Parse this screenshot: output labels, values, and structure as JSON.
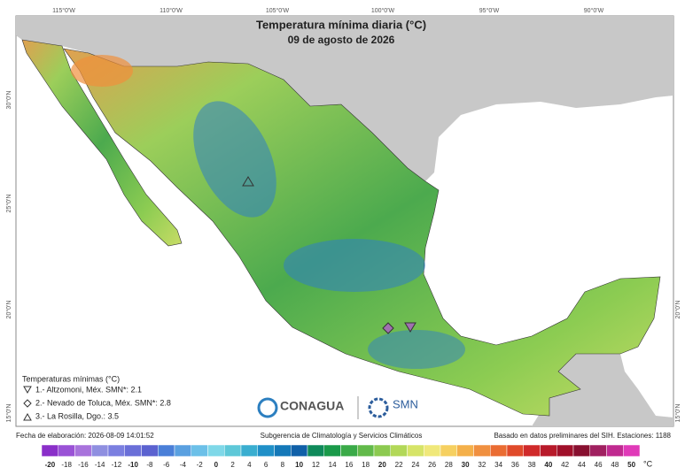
{
  "title": "Temperatura mínima diaria (°C)",
  "subtitle": "09 de agosto de 2026",
  "longitude_labels": [
    "115°0'W",
    "110°0'W",
    "105°0'W",
    "100°0'W",
    "95°0'W",
    "90°0'W"
  ],
  "left_latitude_labels": [
    "30°0'N",
    "25°0'N",
    "20°0'N",
    "15°0'N"
  ],
  "right_latitude_labels": [
    "20°0'N",
    "15°0'N"
  ],
  "legend": {
    "title": "Temperaturas mínimas (°C)",
    "items": [
      "1.- Altzomoni, Méx. SMN*: 2.1",
      "2.- Nevado de Toluca, Méx. SMN*: 2.8",
      "3.- La Rosilla, Dgo.: 3.5"
    ]
  },
  "logos": [
    "CONAGUA",
    "SMN"
  ],
  "footer": {
    "date": "Fecha de elaboración: 2026-08-09 14:01:52",
    "credit": "Subgerencia de Climatología y Servicios Climáticos",
    "source": "Basado en datos preliminares del SIH. Estaciones: 1188"
  },
  "colorbar": {
    "unit": "°C",
    "ticks": [
      -20,
      -18,
      -16,
      -14,
      -12,
      -10,
      -8,
      -6,
      -4,
      -2,
      0,
      2,
      4,
      6,
      8,
      10,
      12,
      14,
      16,
      18,
      20,
      22,
      24,
      26,
      28,
      30,
      32,
      34,
      36,
      38,
      40,
      42,
      44,
      46,
      48,
      50
    ],
    "colors": [
      "#8a2fc9",
      "#9a52d6",
      "#a873dc",
      "#8f8fe0",
      "#7b7fe0",
      "#6a6fd8",
      "#5b62d0",
      "#4a7fd8",
      "#5aa0e0",
      "#6cc0e8",
      "#7fd8e8",
      "#5ec8d8",
      "#3aaed0",
      "#2090c8",
      "#1478b8",
      "#1060a8",
      "#0f8a5a",
      "#1a9a4a",
      "#3aaa48",
      "#62ba4a",
      "#8cca50",
      "#b2d858",
      "#d6e468",
      "#f0e87a",
      "#f6d060",
      "#f4b04a",
      "#f09040",
      "#ea6c32",
      "#e04a2a",
      "#d02a2a",
      "#b81a2a",
      "#a0102a",
      "#881030",
      "#a02060",
      "#c02a90",
      "#e03ab8"
    ]
  }
}
